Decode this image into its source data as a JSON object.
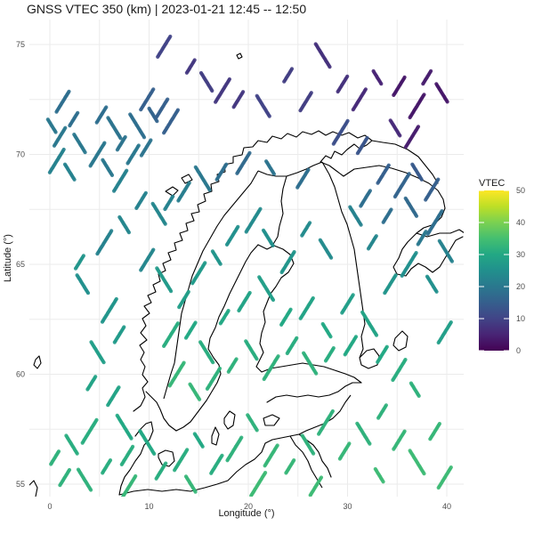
{
  "title": "GNSS VTEC 350 (km) | 2023-01-21 12:45 -- 12:50",
  "axes": {
    "xlabel": "Longitude (°)",
    "ylabel": "Latitude (°)",
    "x_ticks": [
      "0",
      "10",
      "20",
      "30",
      "40"
    ],
    "y_ticks": [
      "55",
      "60",
      "65",
      "70",
      "75"
    ]
  },
  "legend": {
    "title": "VTEC",
    "ticks": [
      "0",
      "10",
      "20",
      "30",
      "40",
      "50"
    ],
    "colorscale": "viridis"
  },
  "chart_data": {
    "type": "scatter",
    "title": "GNSS VTEC 350 (km) | 2023-01-21 12:45 -- 12:50",
    "xlabel": "Longitude (°)",
    "ylabel": "Latitude (°)",
    "xlim": [
      -2,
      42
    ],
    "ylim": [
      54,
      76
    ],
    "color_range": [
      0,
      50
    ],
    "grid": true,
    "legend_position": "right",
    "series": [
      {
        "group": "north-sea-arctic-west",
        "points": [
          {
            "lon": 0.2,
            "lat": 71.3,
            "v": 20
          },
          {
            "lon": 1.0,
            "lat": 70.8,
            "v": 20
          },
          {
            "lon": 0.7,
            "lat": 69.7,
            "v": 22
          },
          {
            "lon": 2.0,
            "lat": 69.2,
            "v": 22
          },
          {
            "lon": 1.3,
            "lat": 72.4,
            "v": 18
          },
          {
            "lon": 2.4,
            "lat": 71.6,
            "v": 18
          },
          {
            "lon": 3.0,
            "lat": 70.5,
            "v": 20
          },
          {
            "lon": 4.8,
            "lat": 70.0,
            "v": 20
          },
          {
            "lon": 5.2,
            "lat": 71.8,
            "v": 18
          },
          {
            "lon": 6.5,
            "lat": 71.2,
            "v": 19
          },
          {
            "lon": 7.2,
            "lat": 70.5,
            "v": 19
          },
          {
            "lon": 8.4,
            "lat": 70.0,
            "v": 20
          },
          {
            "lon": 8.8,
            "lat": 71.3,
            "v": 18
          },
          {
            "lon": 9.7,
            "lat": 70.3,
            "v": 19
          },
          {
            "lon": 9.8,
            "lat": 72.5,
            "v": 15
          },
          {
            "lon": 10.4,
            "lat": 71.8,
            "v": 16
          },
          {
            "lon": 11.3,
            "lat": 72.1,
            "v": 15
          },
          {
            "lon": 12.2,
            "lat": 71.5,
            "v": 15
          },
          {
            "lon": 5.8,
            "lat": 69.4,
            "v": 20
          },
          {
            "lon": 7.1,
            "lat": 68.8,
            "v": 22
          }
        ]
      },
      {
        "group": "barents-north",
        "points": [
          {
            "lon": 11.5,
            "lat": 74.9,
            "v": 10
          },
          {
            "lon": 14.2,
            "lat": 74.0,
            "v": 8
          },
          {
            "lon": 15.8,
            "lat": 73.3,
            "v": 9
          },
          {
            "lon": 17.4,
            "lat": 72.9,
            "v": 8
          },
          {
            "lon": 19.0,
            "lat": 72.5,
            "v": 8
          },
          {
            "lon": 21.5,
            "lat": 72.2,
            "v": 10
          },
          {
            "lon": 24.0,
            "lat": 73.6,
            "v": 9
          },
          {
            "lon": 25.8,
            "lat": 72.4,
            "v": 9
          },
          {
            "lon": 27.5,
            "lat": 74.5,
            "v": 7
          },
          {
            "lon": 29.5,
            "lat": 73.2,
            "v": 7
          },
          {
            "lon": 31.2,
            "lat": 72.5,
            "v": 6
          },
          {
            "lon": 33.0,
            "lat": 73.5,
            "v": 5
          },
          {
            "lon": 35.2,
            "lat": 73.1,
            "v": 3
          },
          {
            "lon": 37.0,
            "lat": 72.2,
            "v": 3
          },
          {
            "lon": 34.8,
            "lat": 71.2,
            "v": 6
          },
          {
            "lon": 36.5,
            "lat": 70.8,
            "v": 4
          },
          {
            "lon": 38.0,
            "lat": 73.5,
            "v": 4
          },
          {
            "lon": 39.5,
            "lat": 72.8,
            "v": 3
          },
          {
            "lon": 29.3,
            "lat": 71.0,
            "v": 12
          },
          {
            "lon": 31.5,
            "lat": 70.4,
            "v": 13
          }
        ]
      },
      {
        "group": "norway-coast",
        "points": [
          {
            "lon": 9.2,
            "lat": 67.9,
            "v": 22
          },
          {
            "lon": 11.0,
            "lat": 67.3,
            "v": 23
          },
          {
            "lon": 12.0,
            "lat": 67.8,
            "v": 22
          },
          {
            "lon": 13.5,
            "lat": 68.3,
            "v": 21
          },
          {
            "lon": 15.4,
            "lat": 68.9,
            "v": 20
          },
          {
            "lon": 17.3,
            "lat": 69.2,
            "v": 18
          },
          {
            "lon": 19.5,
            "lat": 69.6,
            "v": 17
          },
          {
            "lon": 22.2,
            "lat": 69.4,
            "v": 19
          },
          {
            "lon": 25.5,
            "lat": 68.9,
            "v": 18
          },
          {
            "lon": 5.5,
            "lat": 66.0,
            "v": 22
          },
          {
            "lon": 7.5,
            "lat": 66.8,
            "v": 23
          },
          {
            "lon": 9.8,
            "lat": 65.2,
            "v": 23
          },
          {
            "lon": 3.0,
            "lat": 65.1,
            "v": 26
          },
          {
            "lon": 3.3,
            "lat": 64.1,
            "v": 25
          },
          {
            "lon": 6.0,
            "lat": 62.9,
            "v": 26
          },
          {
            "lon": 7.0,
            "lat": 61.8,
            "v": 27
          },
          {
            "lon": 4.8,
            "lat": 61.0,
            "v": 28
          },
          {
            "lon": 4.2,
            "lat": 59.6,
            "v": 29
          },
          {
            "lon": 6.4,
            "lat": 59.0,
            "v": 29
          },
          {
            "lon": 7.5,
            "lat": 57.6,
            "v": 30
          }
        ]
      },
      {
        "group": "scandinavia-interior",
        "points": [
          {
            "lon": 11.5,
            "lat": 64.3,
            "v": 27
          },
          {
            "lon": 13.5,
            "lat": 63.4,
            "v": 28
          },
          {
            "lon": 15.0,
            "lat": 64.6,
            "v": 27
          },
          {
            "lon": 16.8,
            "lat": 65.3,
            "v": 26
          },
          {
            "lon": 18.4,
            "lat": 66.3,
            "v": 25
          },
          {
            "lon": 20.5,
            "lat": 67.0,
            "v": 24
          },
          {
            "lon": 22.0,
            "lat": 66.2,
            "v": 25
          },
          {
            "lon": 24.0,
            "lat": 65.1,
            "v": 26
          },
          {
            "lon": 25.8,
            "lat": 66.6,
            "v": 24
          },
          {
            "lon": 27.8,
            "lat": 65.7,
            "v": 24
          },
          {
            "lon": 12.2,
            "lat": 61.8,
            "v": 31
          },
          {
            "lon": 14.2,
            "lat": 62.0,
            "v": 30
          },
          {
            "lon": 15.8,
            "lat": 61.0,
            "v": 31
          },
          {
            "lon": 17.6,
            "lat": 62.6,
            "v": 30
          },
          {
            "lon": 19.6,
            "lat": 63.3,
            "v": 29
          },
          {
            "lon": 21.8,
            "lat": 63.9,
            "v": 28
          },
          {
            "lon": 23.8,
            "lat": 62.6,
            "v": 30
          },
          {
            "lon": 25.9,
            "lat": 63.0,
            "v": 29
          },
          {
            "lon": 27.9,
            "lat": 62.0,
            "v": 30
          },
          {
            "lon": 30.0,
            "lat": 63.2,
            "v": 28
          },
          {
            "lon": 12.8,
            "lat": 60.0,
            "v": 33
          },
          {
            "lon": 14.6,
            "lat": 59.2,
            "v": 33
          },
          {
            "lon": 16.5,
            "lat": 59.8,
            "v": 32
          },
          {
            "lon": 18.4,
            "lat": 60.4,
            "v": 32
          },
          {
            "lon": 20.3,
            "lat": 61.1,
            "v": 31
          },
          {
            "lon": 22.3,
            "lat": 60.3,
            "v": 32
          },
          {
            "lon": 24.4,
            "lat": 61.3,
            "v": 31
          },
          {
            "lon": 26.2,
            "lat": 60.5,
            "v": 32
          },
          {
            "lon": 28.2,
            "lat": 60.9,
            "v": 31
          },
          {
            "lon": 30.3,
            "lat": 61.3,
            "v": 30
          },
          {
            "lon": 32.2,
            "lat": 62.3,
            "v": 29
          },
          {
            "lon": 33.5,
            "lat": 60.9,
            "v": 30
          },
          {
            "lon": 35.2,
            "lat": 60.2,
            "v": 31
          },
          {
            "lon": 36.8,
            "lat": 59.3,
            "v": 32
          },
          {
            "lon": 34.3,
            "lat": 64.1,
            "v": 26
          },
          {
            "lon": 36.2,
            "lat": 65.0,
            "v": 25
          },
          {
            "lon": 38.5,
            "lat": 64.1,
            "v": 25
          },
          {
            "lon": 39.8,
            "lat": 61.9,
            "v": 28
          },
          {
            "lon": 32.5,
            "lat": 66.0,
            "v": 23
          },
          {
            "lon": 30.8,
            "lat": 67.2,
            "v": 22
          }
        ]
      },
      {
        "group": "kola-whitesea",
        "points": [
          {
            "lon": 33.6,
            "lat": 69.1,
            "v": 15
          },
          {
            "lon": 35.5,
            "lat": 68.6,
            "v": 16
          },
          {
            "lon": 37.0,
            "lat": 69.2,
            "v": 14
          },
          {
            "lon": 38.5,
            "lat": 68.4,
            "v": 15
          },
          {
            "lon": 34.0,
            "lat": 67.2,
            "v": 18
          },
          {
            "lon": 36.4,
            "lat": 67.6,
            "v": 17
          },
          {
            "lon": 38.8,
            "lat": 66.9,
            "v": 18
          },
          {
            "lon": 31.8,
            "lat": 68.0,
            "v": 18
          },
          {
            "lon": 39.9,
            "lat": 65.6,
            "v": 22
          },
          {
            "lon": 37.5,
            "lat": 66.2,
            "v": 20
          }
        ]
      },
      {
        "group": "south-baltic",
        "points": [
          {
            "lon": 0.5,
            "lat": 56.2,
            "v": 32
          },
          {
            "lon": 2.2,
            "lat": 56.8,
            "v": 31
          },
          {
            "lon": 4.0,
            "lat": 57.4,
            "v": 31
          },
          {
            "lon": 1.5,
            "lat": 55.3,
            "v": 32
          },
          {
            "lon": 3.5,
            "lat": 55.2,
            "v": 32
          },
          {
            "lon": 5.7,
            "lat": 55.8,
            "v": 31
          },
          {
            "lon": 7.8,
            "lat": 56.3,
            "v": 31
          },
          {
            "lon": 9.8,
            "lat": 56.9,
            "v": 30
          },
          {
            "lon": 11.2,
            "lat": 55.6,
            "v": 31
          },
          {
            "lon": 13.2,
            "lat": 56.1,
            "v": 31
          },
          {
            "lon": 15.0,
            "lat": 57.0,
            "v": 30
          },
          {
            "lon": 16.8,
            "lat": 55.9,
            "v": 31
          },
          {
            "lon": 18.6,
            "lat": 56.6,
            "v": 32
          },
          {
            "lon": 20.4,
            "lat": 57.8,
            "v": 32
          },
          {
            "lon": 22.3,
            "lat": 56.3,
            "v": 33
          },
          {
            "lon": 24.2,
            "lat": 55.8,
            "v": 33
          },
          {
            "lon": 26.0,
            "lat": 56.8,
            "v": 32
          },
          {
            "lon": 27.8,
            "lat": 57.8,
            "v": 32
          },
          {
            "lon": 29.7,
            "lat": 56.5,
            "v": 33
          },
          {
            "lon": 31.6,
            "lat": 57.3,
            "v": 32
          },
          {
            "lon": 33.5,
            "lat": 58.3,
            "v": 32
          },
          {
            "lon": 35.2,
            "lat": 57.0,
            "v": 33
          },
          {
            "lon": 37.0,
            "lat": 56.0,
            "v": 34
          },
          {
            "lon": 38.8,
            "lat": 57.4,
            "v": 33
          },
          {
            "lon": 39.8,
            "lat": 55.3,
            "v": 34
          },
          {
            "lon": 33.2,
            "lat": 55.4,
            "v": 34
          },
          {
            "lon": 26.8,
            "lat": 54.9,
            "v": 34
          },
          {
            "lon": 21.0,
            "lat": 55.0,
            "v": 34
          },
          {
            "lon": 14.2,
            "lat": 55.0,
            "v": 33
          },
          {
            "lon": 8.0,
            "lat": 54.9,
            "v": 33
          }
        ]
      }
    ]
  }
}
